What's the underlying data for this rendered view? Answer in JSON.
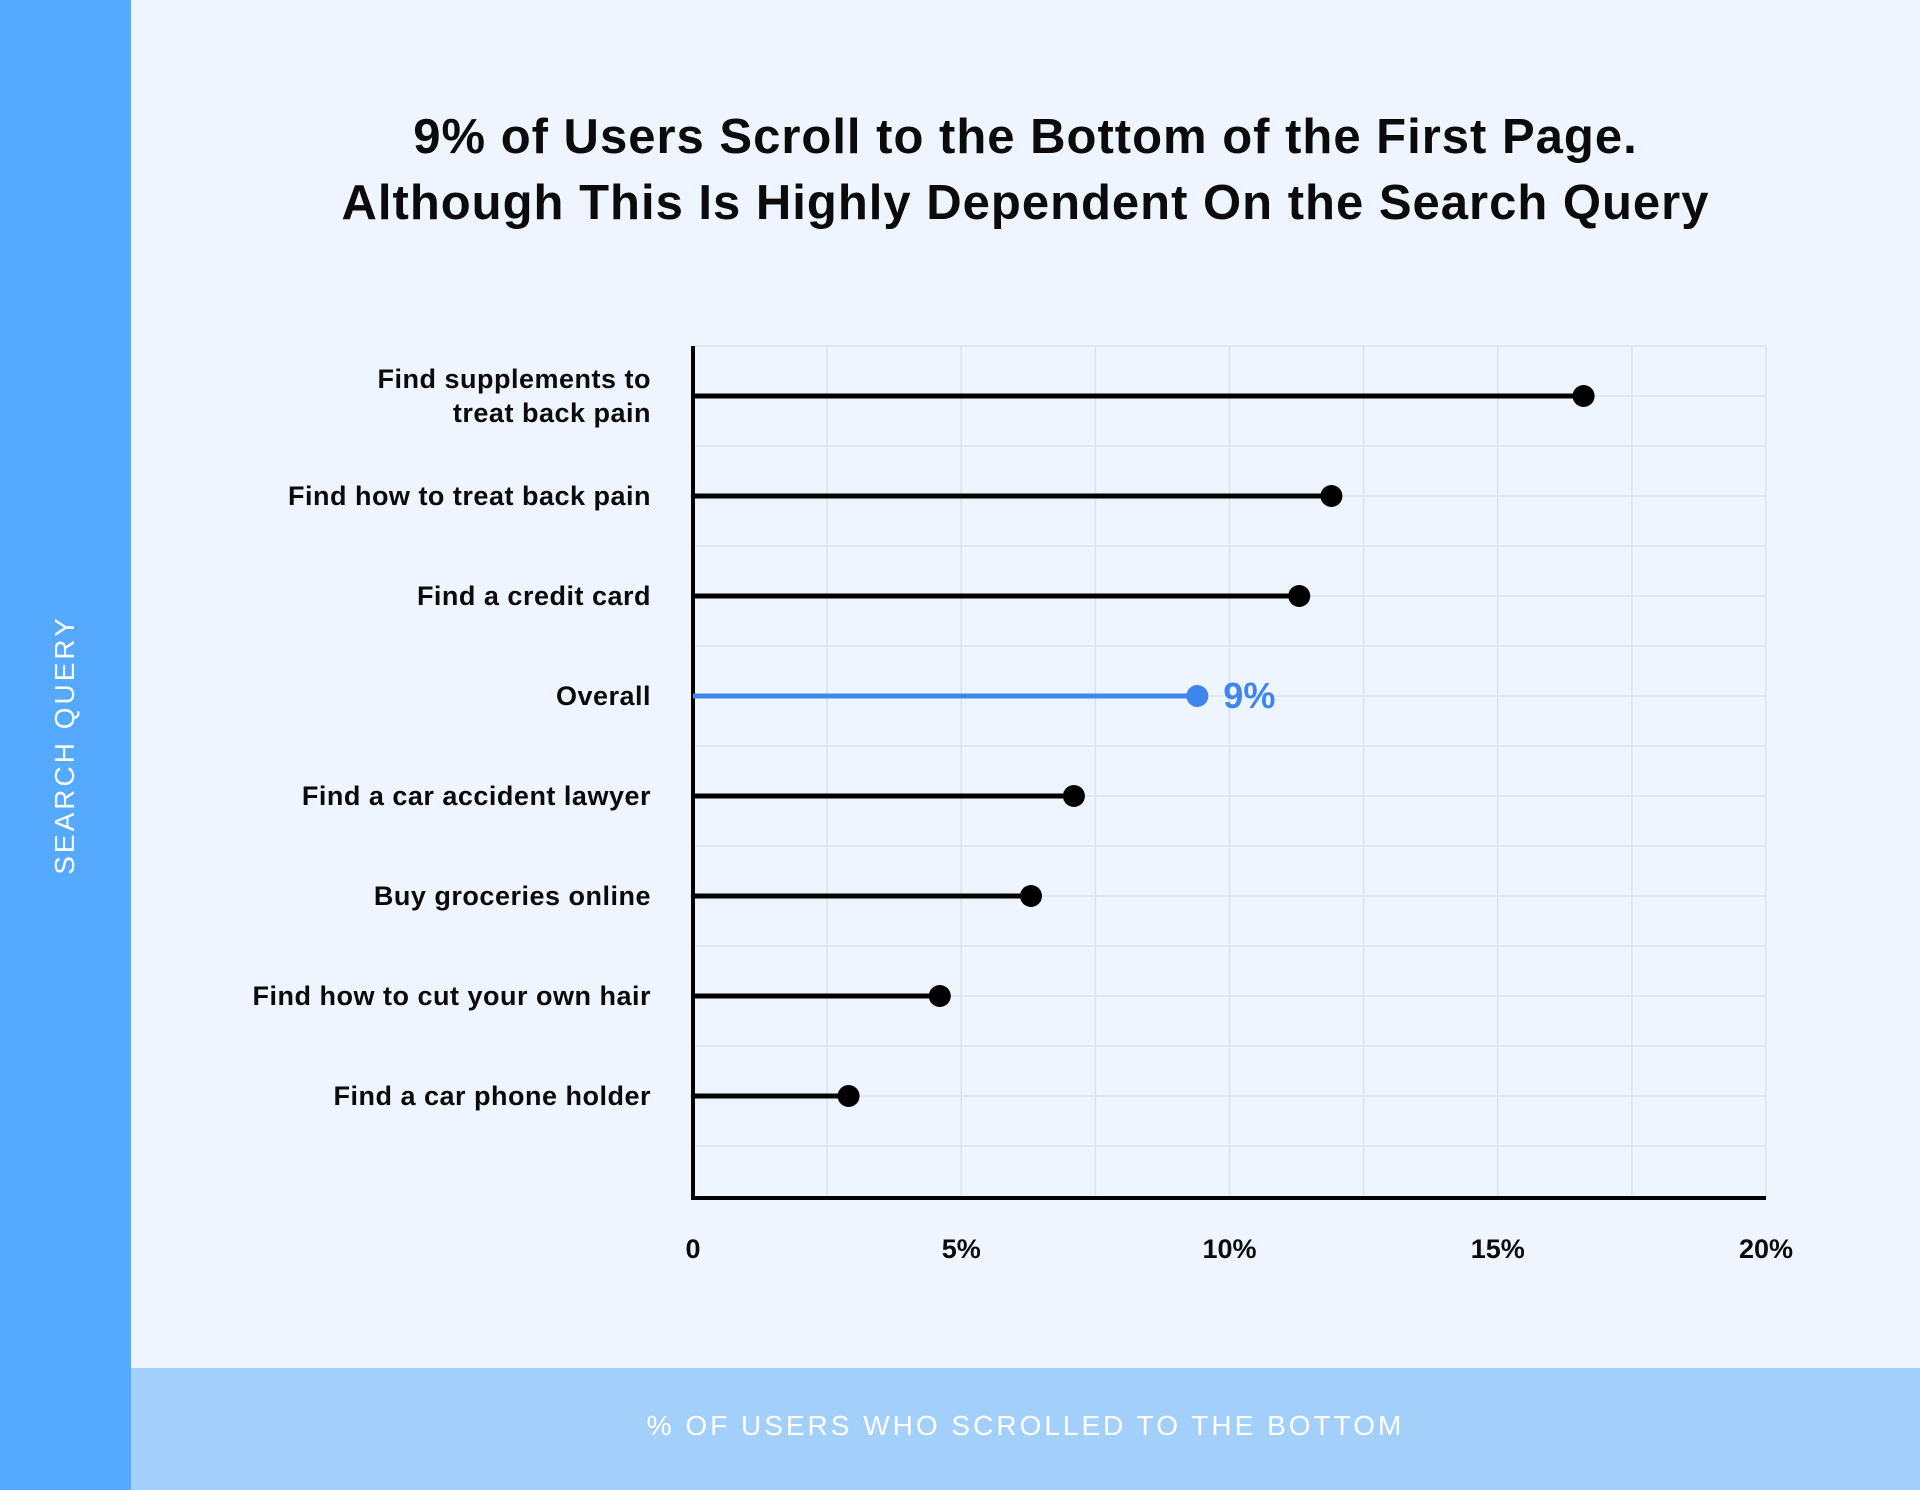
{
  "chart_data": {
    "type": "lollipop",
    "orientation": "horizontal",
    "title": "9% of Users Scroll to the Bottom of the First Page.\nAlthough This Is Highly Dependent On the Search Query",
    "x_label": "% OF USERS WHO SCROLLED TO THE BOTTOM",
    "y_label": "SEARCH QUERY",
    "categories": [
      "Find supplements to\ntreat back pain",
      "Find how to treat back pain",
      "Find a credit card",
      "Overall",
      "Find a car accident lawyer",
      "Buy groceries online",
      "Find how to cut your own hair",
      "Find a car phone holder"
    ],
    "values": [
      16.6,
      11.9,
      11.3,
      9.4,
      7.1,
      6.3,
      4.6,
      2.9
    ],
    "value_labels": [
      null,
      null,
      null,
      "9%",
      null,
      null,
      null,
      null
    ],
    "colors": [
      "#000000",
      "#000000",
      "#000000",
      "#3d86ee",
      "#000000",
      "#000000",
      "#000000",
      "#000000"
    ],
    "xlim": [
      0,
      20
    ],
    "xticks": [
      0,
      {
        "value": 5,
        "label": "5%"
      },
      {
        "value": 10,
        "label": "10%"
      },
      {
        "value": 15,
        "label": "15%"
      },
      {
        "value": 20,
        "label": "20%"
      }
    ],
    "minor_xticks": [
      2.5,
      7.5,
      12.5,
      17.5
    ],
    "grid": true
  }
}
